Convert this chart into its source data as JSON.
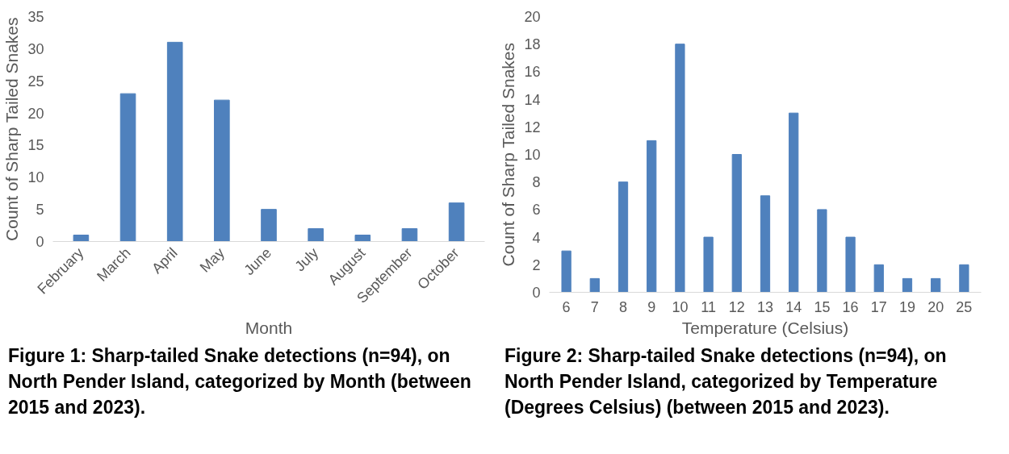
{
  "chart_data": [
    {
      "type": "bar",
      "xlabel": "Month",
      "ylabel": "Count of Sharp Tailed Snakes",
      "categories": [
        "February",
        "March",
        "April",
        "May",
        "June",
        "July",
        "August",
        "September",
        "October"
      ],
      "values": [
        1,
        23,
        31,
        22,
        5,
        2,
        1,
        2,
        6
      ],
      "color": "#4f81bd",
      "ylim": [
        0,
        35
      ],
      "yticks": [
        0,
        5,
        10,
        15,
        20,
        25,
        30,
        35
      ],
      "grid": false,
      "annotations": [
        "Figure 1: Sharp-tailed Snake detections (n=94), on North Pender Island, categorized by Month (between 2015 and 2023)."
      ]
    },
    {
      "type": "bar",
      "xlabel": "Temperature (Celsius)",
      "ylabel": "Count of Sharp Tailed Snakes",
      "categories": [
        "6",
        "7",
        "8",
        "9",
        "10",
        "11",
        "12",
        "13",
        "14",
        "15",
        "16",
        "17",
        "19",
        "20",
        "25"
      ],
      "values": [
        3,
        1,
        8,
        11,
        18,
        4,
        10,
        7,
        13,
        6,
        4,
        2,
        1,
        1,
        2
      ],
      "color": "#4f81bd",
      "ylim": [
        0,
        20
      ],
      "yticks": [
        0,
        2,
        4,
        6,
        8,
        10,
        12,
        14,
        16,
        18,
        20
      ],
      "grid": false,
      "annotations": [
        "Figure 2: Sharp-tailed Snake detections (n=94), on North Pender Island, categorized by Temperature (Degrees Celsius) (between 2015 and 2023)."
      ]
    }
  ]
}
